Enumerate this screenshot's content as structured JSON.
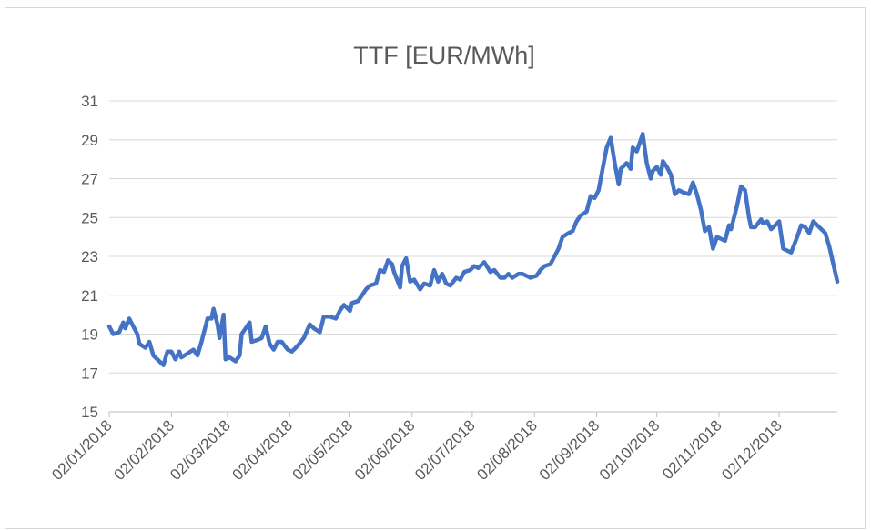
{
  "chart_data": {
    "type": "line",
    "title": "TTF [EUR/MWh]",
    "color": "#4472c4",
    "grid": true,
    "xlim": [
      "2018-01-02",
      "2018-12-31"
    ],
    "xticks": [
      {
        "value": "2018-01-02",
        "label": "02/01/2018"
      },
      {
        "value": "2018-02-02",
        "label": "02/02/2018"
      },
      {
        "value": "2018-03-02",
        "label": "02/03/2018"
      },
      {
        "value": "2018-04-02",
        "label": "02/04/2018"
      },
      {
        "value": "2018-05-02",
        "label": "02/05/2018"
      },
      {
        "value": "2018-06-02",
        "label": "02/06/2018"
      },
      {
        "value": "2018-07-02",
        "label": "02/07/2018"
      },
      {
        "value": "2018-08-02",
        "label": "02/08/2018"
      },
      {
        "value": "2018-09-02",
        "label": "02/09/2018"
      },
      {
        "value": "2018-10-02",
        "label": "02/10/2018"
      },
      {
        "value": "2018-11-02",
        "label": "02/11/2018"
      },
      {
        "value": "2018-12-02",
        "label": "02/12/2018"
      }
    ],
    "ylim": [
      15,
      31
    ],
    "yticks": [
      15,
      17,
      19,
      21,
      23,
      25,
      27,
      29,
      31
    ],
    "x": [
      "2018-01-02",
      "2018-01-04",
      "2018-01-07",
      "2018-01-09",
      "2018-01-10",
      "2018-01-12",
      "2018-01-14",
      "2018-01-16",
      "2018-01-17",
      "2018-01-20",
      "2018-01-22",
      "2018-01-24",
      "2018-01-27",
      "2018-01-29",
      "2018-01-31",
      "2018-02-02",
      "2018-02-04",
      "2018-02-06",
      "2018-02-07",
      "2018-02-10",
      "2018-02-13",
      "2018-02-15",
      "2018-02-17",
      "2018-02-20",
      "2018-02-22",
      "2018-02-23",
      "2018-02-25",
      "2018-02-26",
      "2018-02-28",
      "2018-03-01",
      "2018-03-03",
      "2018-03-06",
      "2018-03-08",
      "2018-03-09",
      "2018-03-11",
      "2018-03-13",
      "2018-03-14",
      "2018-03-17",
      "2018-03-19",
      "2018-03-21",
      "2018-03-23",
      "2018-03-25",
      "2018-03-27",
      "2018-03-29",
      "2018-04-01",
      "2018-04-03",
      "2018-04-06",
      "2018-04-09",
      "2018-04-12",
      "2018-04-14",
      "2018-04-17",
      "2018-04-19",
      "2018-04-22",
      "2018-04-25",
      "2018-04-27",
      "2018-04-29",
      "2018-05-02",
      "2018-05-03",
      "2018-05-06",
      "2018-05-08",
      "2018-05-10",
      "2018-05-12",
      "2018-05-15",
      "2018-05-17",
      "2018-05-19",
      "2018-05-21",
      "2018-05-23",
      "2018-05-24",
      "2018-05-27",
      "2018-05-28",
      "2018-05-30",
      "2018-06-01",
      "2018-06-03",
      "2018-06-06",
      "2018-06-08",
      "2018-06-11",
      "2018-06-13",
      "2018-06-15",
      "2018-06-17",
      "2018-06-19",
      "2018-06-21",
      "2018-06-24",
      "2018-06-26",
      "2018-06-28",
      "2018-07-01",
      "2018-07-03",
      "2018-07-05",
      "2018-07-08",
      "2018-07-11",
      "2018-07-13",
      "2018-07-16",
      "2018-07-18",
      "2018-07-20",
      "2018-07-22",
      "2018-07-25",
      "2018-07-27",
      "2018-07-29",
      "2018-07-31",
      "2018-08-03",
      "2018-08-05",
      "2018-08-07",
      "2018-08-10",
      "2018-08-12",
      "2018-08-14",
      "2018-08-16",
      "2018-08-19",
      "2018-08-21",
      "2018-08-23",
      "2018-08-25",
      "2018-08-28",
      "2018-08-30",
      "2018-09-01",
      "2018-09-03",
      "2018-09-05",
      "2018-09-07",
      "2018-09-09",
      "2018-09-11",
      "2018-09-13",
      "2018-09-14",
      "2018-09-17",
      "2018-09-19",
      "2018-09-20",
      "2018-09-22",
      "2018-09-24",
      "2018-09-25",
      "2018-09-27",
      "2018-09-29",
      "2018-09-30",
      "2018-10-02",
      "2018-10-04",
      "2018-10-05",
      "2018-10-07",
      "2018-10-09",
      "2018-10-11",
      "2018-10-13",
      "2018-10-15",
      "2018-10-18",
      "2018-10-20",
      "2018-10-22",
      "2018-10-24",
      "2018-10-26",
      "2018-10-28",
      "2018-10-30",
      "2018-11-01",
      "2018-11-03",
      "2018-11-05",
      "2018-11-07",
      "2018-11-08",
      "2018-11-11",
      "2018-11-13",
      "2018-11-15",
      "2018-11-17",
      "2018-11-18",
      "2018-11-20",
      "2018-11-23",
      "2018-11-24",
      "2018-11-26",
      "2018-11-28",
      "2018-11-30",
      "2018-12-02",
      "2018-12-04",
      "2018-12-06",
      "2018-12-08",
      "2018-12-11",
      "2018-12-13",
      "2018-12-15",
      "2018-12-17",
      "2018-12-19",
      "2018-12-21",
      "2018-12-23",
      "2018-12-25",
      "2018-12-27",
      "2018-12-29",
      "2018-12-31"
    ],
    "values": [
      19.4,
      19.0,
      19.1,
      19.6,
      19.3,
      19.8,
      19.4,
      19.0,
      18.5,
      18.3,
      18.6,
      17.9,
      17.6,
      17.4,
      18.1,
      18.1,
      17.7,
      18.1,
      17.8,
      18.0,
      18.2,
      17.9,
      18.6,
      19.8,
      19.8,
      20.3,
      19.5,
      18.8,
      20.0,
      17.7,
      17.8,
      17.6,
      17.9,
      19.0,
      19.3,
      19.6,
      18.6,
      18.7,
      18.8,
      19.4,
      18.5,
      18.2,
      18.6,
      18.6,
      18.2,
      18.1,
      18.4,
      18.8,
      19.5,
      19.3,
      19.1,
      19.9,
      19.9,
      19.8,
      20.2,
      20.5,
      20.2,
      20.6,
      20.7,
      21.0,
      21.3,
      21.5,
      21.6,
      22.3,
      22.2,
      22.8,
      22.6,
      22.2,
      21.4,
      22.5,
      22.9,
      21.7,
      21.8,
      21.3,
      21.6,
      21.5,
      22.3,
      21.7,
      22.1,
      21.6,
      21.5,
      21.9,
      21.8,
      22.2,
      22.3,
      22.5,
      22.4,
      22.7,
      22.2,
      22.3,
      21.9,
      21.9,
      22.1,
      21.9,
      22.1,
      22.1,
      22.0,
      21.9,
      22.0,
      22.3,
      22.5,
      22.6,
      23.0,
      23.4,
      24.0,
      24.2,
      24.3,
      24.8,
      25.1,
      25.3,
      26.1,
      26.0,
      26.4,
      27.5,
      28.6,
      29.1,
      27.8,
      26.7,
      27.5,
      27.8,
      27.5,
      28.6,
      28.4,
      29.0,
      29.3,
      27.8,
      27.0,
      27.4,
      27.6,
      27.2,
      27.9,
      27.6,
      27.2,
      26.2,
      26.4,
      26.3,
      26.2,
      26.8,
      26.2,
      25.4,
      24.3,
      24.5,
      23.4,
      24.0,
      23.9,
      23.8,
      24.6,
      24.4,
      25.6,
      26.6,
      26.4,
      25.0,
      24.5,
      24.5,
      24.9,
      24.7,
      24.8,
      24.4,
      24.6,
      24.8,
      23.4,
      23.3,
      23.2,
      24.0,
      24.6,
      24.5,
      24.2,
      24.8,
      24.6,
      24.4,
      24.2,
      23.5,
      22.6,
      21.7
    ]
  }
}
